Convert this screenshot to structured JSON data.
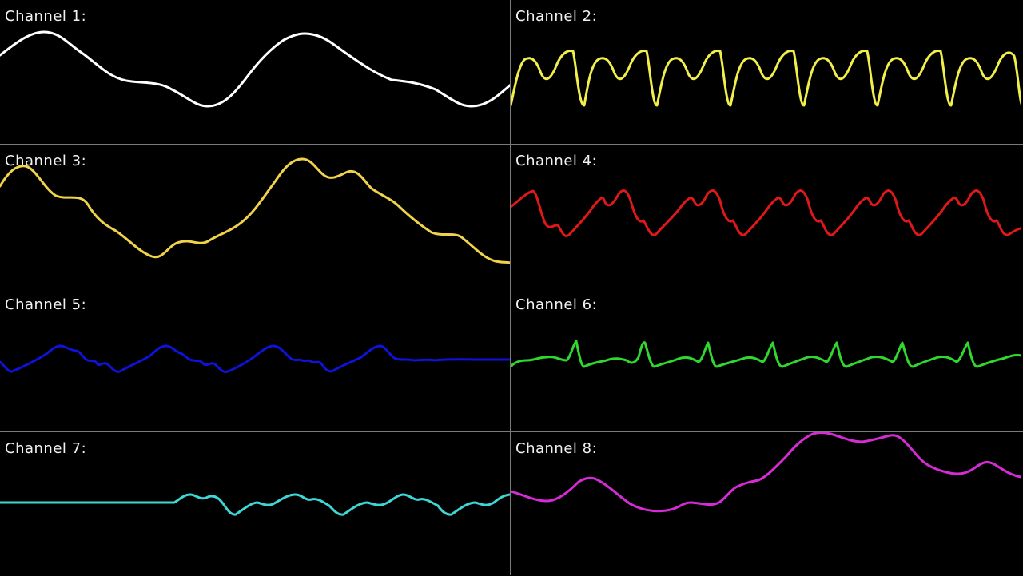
{
  "channels": [
    {
      "label": "Channel 1:",
      "color": "#ffffff",
      "icon": "waveform-sine-large"
    },
    {
      "label": "Channel 2:",
      "color": "#f2ef4a",
      "icon": "waveform-periodic-fast"
    },
    {
      "label": "Channel 3:",
      "color": "#f0d34a",
      "icon": "waveform-sine-large"
    },
    {
      "label": "Channel 4:",
      "color": "#e01818",
      "icon": "waveform-periodic"
    },
    {
      "label": "Channel 5:",
      "color": "#0f12d8",
      "icon": "waveform-small"
    },
    {
      "label": "Channel 6:",
      "color": "#2fd82f",
      "icon": "waveform-spiky"
    },
    {
      "label": "Channel 7:",
      "color": "#3fd6d6",
      "icon": "waveform-small"
    },
    {
      "label": "Channel 8:",
      "color": "#d82bd8",
      "icon": "waveform-sine-large"
    }
  ]
}
